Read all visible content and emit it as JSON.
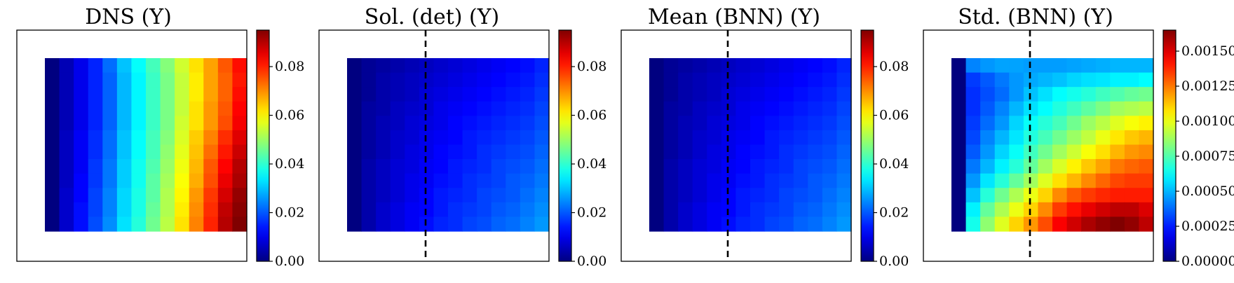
{
  "chart_data": [
    {
      "type": "heatmap",
      "title": "DNS (Y)",
      "colormap": "jet",
      "grid": false,
      "dashed_line": false,
      "colorbar": {
        "min": 0,
        "max": 0.095,
        "ticks": [
          0.0,
          0.02,
          0.04,
          0.06,
          0.08
        ],
        "tick_labels": [
          "0.00",
          "0.02",
          "0.04",
          "0.06",
          "0.08"
        ]
      },
      "values": [
        [
          0.0,
          0.005,
          0.01,
          0.015,
          0.022,
          0.03,
          0.036,
          0.042,
          0.048,
          0.055,
          0.062,
          0.068,
          0.075,
          0.082
        ],
        [
          0.0,
          0.005,
          0.01,
          0.015,
          0.021,
          0.029,
          0.035,
          0.041,
          0.047,
          0.054,
          0.061,
          0.068,
          0.074,
          0.081
        ],
        [
          0.0,
          0.005,
          0.01,
          0.015,
          0.021,
          0.029,
          0.035,
          0.041,
          0.047,
          0.054,
          0.061,
          0.068,
          0.074,
          0.082
        ],
        [
          0.0,
          0.005,
          0.01,
          0.015,
          0.021,
          0.029,
          0.035,
          0.041,
          0.047,
          0.054,
          0.062,
          0.069,
          0.075,
          0.083
        ],
        [
          0.0,
          0.005,
          0.01,
          0.015,
          0.021,
          0.029,
          0.035,
          0.041,
          0.047,
          0.055,
          0.062,
          0.069,
          0.076,
          0.084
        ],
        [
          0.0,
          0.006,
          0.011,
          0.016,
          0.022,
          0.03,
          0.036,
          0.042,
          0.048,
          0.056,
          0.064,
          0.071,
          0.079,
          0.086
        ],
        [
          0.0,
          0.006,
          0.011,
          0.016,
          0.022,
          0.03,
          0.036,
          0.042,
          0.049,
          0.057,
          0.065,
          0.073,
          0.081,
          0.088
        ],
        [
          0.0,
          0.006,
          0.011,
          0.017,
          0.023,
          0.031,
          0.037,
          0.043,
          0.05,
          0.058,
          0.066,
          0.075,
          0.083,
          0.09
        ],
        [
          0.0,
          0.006,
          0.012,
          0.017,
          0.023,
          0.031,
          0.037,
          0.044,
          0.051,
          0.059,
          0.067,
          0.076,
          0.085,
          0.091
        ],
        [
          0.0,
          0.007,
          0.012,
          0.018,
          0.024,
          0.032,
          0.038,
          0.044,
          0.052,
          0.06,
          0.069,
          0.078,
          0.087,
          0.093
        ],
        [
          0.0,
          0.007,
          0.013,
          0.018,
          0.024,
          0.032,
          0.038,
          0.045,
          0.052,
          0.061,
          0.07,
          0.079,
          0.089,
          0.094
        ],
        [
          0.0,
          0.007,
          0.013,
          0.019,
          0.025,
          0.033,
          0.039,
          0.046,
          0.053,
          0.062,
          0.071,
          0.08,
          0.09,
          0.095
        ]
      ]
    },
    {
      "type": "heatmap",
      "title": "Sol. (det) (Y)",
      "colormap": "jet",
      "grid": false,
      "dashed_line": true,
      "colorbar": {
        "min": 0,
        "max": 0.095,
        "ticks": [
          0.0,
          0.02,
          0.04,
          0.06,
          0.08
        ],
        "tick_labels": [
          "0.00",
          "0.02",
          "0.04",
          "0.06",
          "0.08"
        ]
      },
      "values": [
        [
          0.0,
          0.002,
          0.003,
          0.004,
          0.005,
          0.006,
          0.007,
          0.008,
          0.009,
          0.01,
          0.011,
          0.012,
          0.013,
          0.015
        ],
        [
          0.0,
          0.002,
          0.004,
          0.005,
          0.006,
          0.007,
          0.008,
          0.009,
          0.01,
          0.011,
          0.012,
          0.013,
          0.014,
          0.016
        ],
        [
          0.0,
          0.002,
          0.004,
          0.005,
          0.006,
          0.008,
          0.009,
          0.01,
          0.011,
          0.012,
          0.013,
          0.014,
          0.015,
          0.017
        ],
        [
          0.0,
          0.003,
          0.004,
          0.006,
          0.007,
          0.008,
          0.01,
          0.011,
          0.012,
          0.013,
          0.014,
          0.015,
          0.016,
          0.018
        ],
        [
          0.0,
          0.003,
          0.005,
          0.006,
          0.008,
          0.009,
          0.01,
          0.012,
          0.013,
          0.014,
          0.015,
          0.016,
          0.017,
          0.019
        ],
        [
          0.0,
          0.003,
          0.005,
          0.007,
          0.008,
          0.01,
          0.011,
          0.012,
          0.014,
          0.015,
          0.016,
          0.017,
          0.018,
          0.02
        ],
        [
          0.0,
          0.003,
          0.005,
          0.007,
          0.009,
          0.01,
          0.012,
          0.013,
          0.014,
          0.016,
          0.017,
          0.018,
          0.019,
          0.021
        ],
        [
          0.0,
          0.004,
          0.006,
          0.008,
          0.009,
          0.011,
          0.012,
          0.014,
          0.015,
          0.016,
          0.018,
          0.019,
          0.02,
          0.022
        ],
        [
          0.0,
          0.004,
          0.006,
          0.008,
          0.01,
          0.011,
          0.013,
          0.014,
          0.016,
          0.017,
          0.018,
          0.02,
          0.021,
          0.023
        ],
        [
          0.0,
          0.004,
          0.006,
          0.008,
          0.01,
          0.012,
          0.014,
          0.015,
          0.016,
          0.018,
          0.019,
          0.02,
          0.022,
          0.024
        ],
        [
          0.0,
          0.004,
          0.007,
          0.009,
          0.011,
          0.012,
          0.014,
          0.016,
          0.017,
          0.018,
          0.02,
          0.021,
          0.023,
          0.025
        ],
        [
          0.0,
          0.004,
          0.007,
          0.009,
          0.011,
          0.013,
          0.015,
          0.016,
          0.018,
          0.019,
          0.021,
          0.022,
          0.024,
          0.026
        ]
      ]
    },
    {
      "type": "heatmap",
      "title": "Mean (BNN) (Y)",
      "colormap": "jet",
      "grid": false,
      "dashed_line": true,
      "colorbar": {
        "min": 0,
        "max": 0.095,
        "ticks": [
          0.0,
          0.02,
          0.04,
          0.06,
          0.08
        ],
        "tick_labels": [
          "0.00",
          "0.02",
          "0.04",
          "0.06",
          "0.08"
        ]
      },
      "values": [
        [
          0.0,
          0.002,
          0.003,
          0.004,
          0.005,
          0.006,
          0.007,
          0.008,
          0.009,
          0.01,
          0.011,
          0.012,
          0.013,
          0.015
        ],
        [
          0.0,
          0.002,
          0.004,
          0.005,
          0.006,
          0.007,
          0.008,
          0.009,
          0.01,
          0.011,
          0.012,
          0.013,
          0.014,
          0.016
        ],
        [
          0.0,
          0.002,
          0.004,
          0.005,
          0.006,
          0.008,
          0.009,
          0.01,
          0.011,
          0.012,
          0.013,
          0.014,
          0.015,
          0.017
        ],
        [
          0.0,
          0.003,
          0.004,
          0.006,
          0.007,
          0.008,
          0.01,
          0.011,
          0.012,
          0.013,
          0.014,
          0.015,
          0.016,
          0.018
        ],
        [
          0.0,
          0.003,
          0.005,
          0.006,
          0.008,
          0.009,
          0.01,
          0.012,
          0.013,
          0.014,
          0.015,
          0.016,
          0.017,
          0.019
        ],
        [
          0.0,
          0.003,
          0.005,
          0.007,
          0.008,
          0.01,
          0.011,
          0.012,
          0.014,
          0.015,
          0.016,
          0.017,
          0.018,
          0.02
        ],
        [
          0.0,
          0.003,
          0.005,
          0.007,
          0.009,
          0.01,
          0.012,
          0.013,
          0.014,
          0.016,
          0.017,
          0.018,
          0.019,
          0.021
        ],
        [
          0.0,
          0.004,
          0.006,
          0.008,
          0.009,
          0.011,
          0.012,
          0.014,
          0.015,
          0.016,
          0.018,
          0.019,
          0.02,
          0.022
        ],
        [
          0.0,
          0.004,
          0.006,
          0.008,
          0.01,
          0.011,
          0.013,
          0.014,
          0.016,
          0.017,
          0.018,
          0.02,
          0.021,
          0.023
        ],
        [
          0.0,
          0.004,
          0.006,
          0.008,
          0.01,
          0.012,
          0.014,
          0.015,
          0.016,
          0.018,
          0.019,
          0.02,
          0.022,
          0.024
        ],
        [
          0.0,
          0.004,
          0.007,
          0.009,
          0.011,
          0.012,
          0.014,
          0.016,
          0.017,
          0.018,
          0.02,
          0.021,
          0.023,
          0.025
        ],
        [
          0.0,
          0.004,
          0.007,
          0.009,
          0.011,
          0.013,
          0.015,
          0.016,
          0.018,
          0.019,
          0.021,
          0.022,
          0.024,
          0.026
        ]
      ]
    },
    {
      "type": "heatmap",
      "title": "Std. (BNN) (Y)",
      "colormap": "jet",
      "grid": false,
      "dashed_line": true,
      "colorbar": {
        "min": 0,
        "max": 0.00165,
        "ticks": [
          0.0,
          0.00025,
          0.0005,
          0.00075,
          0.001,
          0.00125,
          0.0015
        ],
        "tick_labels": [
          "0.00000",
          "0.00025",
          "0.00050",
          "0.00075",
          "0.00100",
          "0.00125",
          "0.00150"
        ]
      },
      "values": [
        [
          0.0,
          0.00042,
          0.00045,
          0.00047,
          0.00047,
          0.00046,
          0.00046,
          0.00046,
          0.00047,
          0.00048,
          0.00049,
          0.0005,
          0.0005,
          0.0005
        ],
        [
          0.0,
          0.0003,
          0.00035,
          0.0004,
          0.00045,
          0.00048,
          0.0005,
          0.00052,
          0.00055,
          0.00057,
          0.00058,
          0.0006,
          0.0006,
          0.00062
        ],
        [
          0.0,
          0.00028,
          0.00033,
          0.00038,
          0.00045,
          0.00052,
          0.00057,
          0.00062,
          0.00065,
          0.00068,
          0.00072,
          0.00075,
          0.00078,
          0.0008
        ],
        [
          0.0,
          0.00028,
          0.00035,
          0.00042,
          0.0005,
          0.00057,
          0.00062,
          0.00067,
          0.00072,
          0.00077,
          0.00082,
          0.00088,
          0.0009,
          0.00092
        ],
        [
          0.0,
          0.0003,
          0.00038,
          0.00045,
          0.00055,
          0.00063,
          0.00068,
          0.00073,
          0.0008,
          0.00087,
          0.00092,
          0.00098,
          0.00102,
          0.00105
        ],
        [
          0.0,
          0.00032,
          0.00042,
          0.0005,
          0.00058,
          0.00067,
          0.00073,
          0.0008,
          0.00087,
          0.00093,
          0.001,
          0.00107,
          0.00112,
          0.00115
        ],
        [
          0.0,
          0.00035,
          0.00045,
          0.00055,
          0.00063,
          0.00072,
          0.0008,
          0.00088,
          0.00095,
          0.00102,
          0.00108,
          0.00115,
          0.0012,
          0.00122
        ],
        [
          0.0,
          0.0004,
          0.0005,
          0.0006,
          0.00068,
          0.00078,
          0.00088,
          0.00097,
          0.00105,
          0.00112,
          0.00118,
          0.00125,
          0.00128,
          0.0013
        ],
        [
          0.0,
          0.00045,
          0.00058,
          0.00068,
          0.00078,
          0.00088,
          0.00098,
          0.00108,
          0.00115,
          0.00122,
          0.00128,
          0.00133,
          0.00135,
          0.00135
        ],
        [
          0.0,
          0.00052,
          0.00068,
          0.0008,
          0.0009,
          0.001,
          0.0011,
          0.00122,
          0.0013,
          0.00135,
          0.00138,
          0.0014,
          0.0014,
          0.0014
        ],
        [
          0.0,
          0.0006,
          0.00078,
          0.0009,
          0.001,
          0.0011,
          0.00122,
          0.00135,
          0.00142,
          0.00148,
          0.00152,
          0.00155,
          0.00155,
          0.0015
        ],
        [
          0.0,
          0.00065,
          0.00085,
          0.00098,
          0.0011,
          0.0012,
          0.00132,
          0.00145,
          0.00152,
          0.00158,
          0.00162,
          0.00165,
          0.00162,
          0.00155
        ]
      ]
    }
  ]
}
